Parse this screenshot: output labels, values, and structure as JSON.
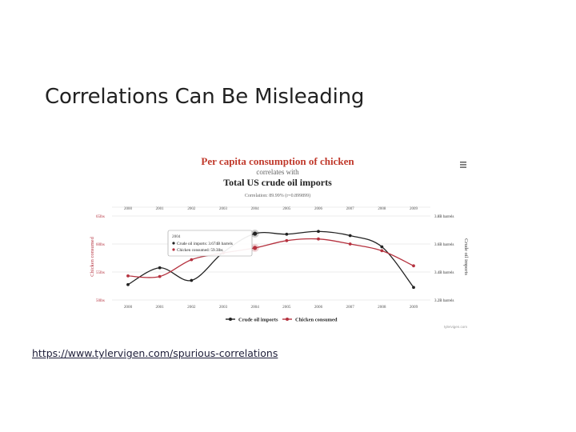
{
  "slide": {
    "title": "Correlations Can Be Misleading",
    "source_link": "https://www.tylervigen.com/spurious-correlations"
  },
  "chart_data": {
    "type": "line",
    "title": "Per capita consumption of chicken",
    "subtitle": "correlates with",
    "title2": "Total US crude oil imports",
    "correlation_note": "Correlation: 89.99% (r=0.899899)",
    "x": [
      "2000",
      "2001",
      "2002",
      "2003",
      "2004",
      "2005",
      "2006",
      "2007",
      "2008",
      "2009"
    ],
    "left_axis": {
      "label": "Chicken consumed",
      "ticks": [
        "65lbs",
        "60lbs",
        "55lbs",
        "50lbs"
      ],
      "ylim": [
        50,
        65
      ]
    },
    "right_axis": {
      "label": "Crude oil imports",
      "ticks": [
        "3.8B barrels",
        "3.6B barrels",
        "3.4B barrels",
        "3.2B barrels"
      ],
      "ylim": [
        3.2,
        3.8
      ]
    },
    "series": [
      {
        "name": "Crude oil imports",
        "axis": "right",
        "color": "#222222",
        "values": [
          3.31,
          3.43,
          3.34,
          3.54,
          3.674,
          3.67,
          3.69,
          3.66,
          3.58,
          3.29
        ]
      },
      {
        "name": "Chicken consumed",
        "axis": "left",
        "color": "#b5323f",
        "values": [
          54.3,
          54.2,
          57.2,
          58.4,
          59.3,
          60.6,
          60.9,
          60.0,
          58.8,
          56.1
        ]
      }
    ],
    "tooltip": {
      "year": "2004",
      "line1": "Crude oil imports: 3.674B barrels",
      "line2": "Chicken consumed: 59.3lbs"
    },
    "legend_position": "bottom",
    "watermark": "tylervigen.com",
    "grid": true
  },
  "colors": {
    "chicken": "#b5323f",
    "oil": "#222222",
    "grid": "#dddddd",
    "title_red": "#c0392b"
  },
  "icons": {
    "menu": "hamburger-menu-icon"
  }
}
